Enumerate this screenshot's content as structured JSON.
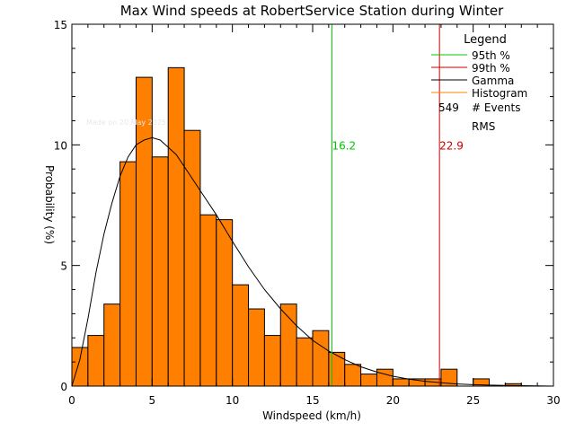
{
  "chart_data": {
    "type": "bar",
    "title": "Max Wind speeds at RobertService Station during Winter",
    "xlabel": "Windspeed (km/h)",
    "ylabel": "Probability (%)",
    "xlim": [
      0,
      30
    ],
    "ylim": [
      0,
      15
    ],
    "x_ticks": [
      "0",
      "5",
      "10",
      "15",
      "20",
      "25",
      "30"
    ],
    "y_ticks": [
      "0",
      "5",
      "10",
      "15"
    ],
    "bin_width": 1,
    "bin_starts": [
      0,
      1,
      2,
      3,
      4,
      5,
      6,
      7,
      8,
      9,
      10,
      11,
      12,
      13,
      14,
      15,
      16,
      17,
      18,
      19,
      20,
      21,
      22,
      23,
      24,
      25,
      26,
      27,
      28,
      29
    ],
    "values": [
      1.6,
      2.1,
      3.4,
      9.3,
      12.8,
      9.5,
      13.2,
      10.6,
      7.1,
      6.9,
      4.2,
      3.2,
      2.1,
      3.4,
      2.0,
      2.3,
      1.4,
      0.9,
      0.5,
      0.7,
      0.3,
      0.3,
      0.3,
      0.7,
      0.0,
      0.3,
      0.0,
      0.1,
      0.0,
      0.0
    ],
    "gamma_curve": {
      "x": [
        0,
        0.5,
        1,
        1.5,
        2,
        2.5,
        3,
        3.5,
        4,
        4.5,
        5,
        5.5,
        6,
        6.5,
        7,
        7.5,
        8,
        9,
        10,
        11,
        12,
        13,
        14,
        15,
        16,
        17,
        18,
        19,
        20,
        21,
        22,
        23,
        24,
        25,
        26,
        27,
        28,
        29,
        30
      ],
      "y": [
        0,
        1.1,
        2.8,
        4.7,
        6.3,
        7.6,
        8.7,
        9.5,
        10.0,
        10.2,
        10.3,
        10.2,
        9.9,
        9.6,
        9.1,
        8.6,
        8.1,
        7.1,
        6.0,
        4.95,
        4.0,
        3.2,
        2.5,
        1.9,
        1.45,
        1.1,
        0.8,
        0.58,
        0.41,
        0.29,
        0.2,
        0.14,
        0.09,
        0.06,
        0.04,
        0.03,
        0.02,
        0.01,
        0.0
      ]
    },
    "percentiles": [
      {
        "label": "16.2",
        "value": 16.2,
        "color": "#00c800"
      },
      {
        "label": "22.9",
        "value": 22.9,
        "color": "#c80000"
      }
    ],
    "legend": {
      "title": "Legend",
      "placement": "top-right",
      "entries": [
        {
          "label": "95th %",
          "color": "#00c800"
        },
        {
          "label": "99th %",
          "color": "#c80000"
        },
        {
          "label": "Gamma",
          "color": "#000000"
        },
        {
          "label": "Histogram",
          "color": "#ff8000"
        }
      ],
      "events_count": "549",
      "events_label": "# Events",
      "rms_label": "RMS"
    },
    "watermark": "Made on 20 May 2025",
    "bar_color": "#ff8000"
  }
}
